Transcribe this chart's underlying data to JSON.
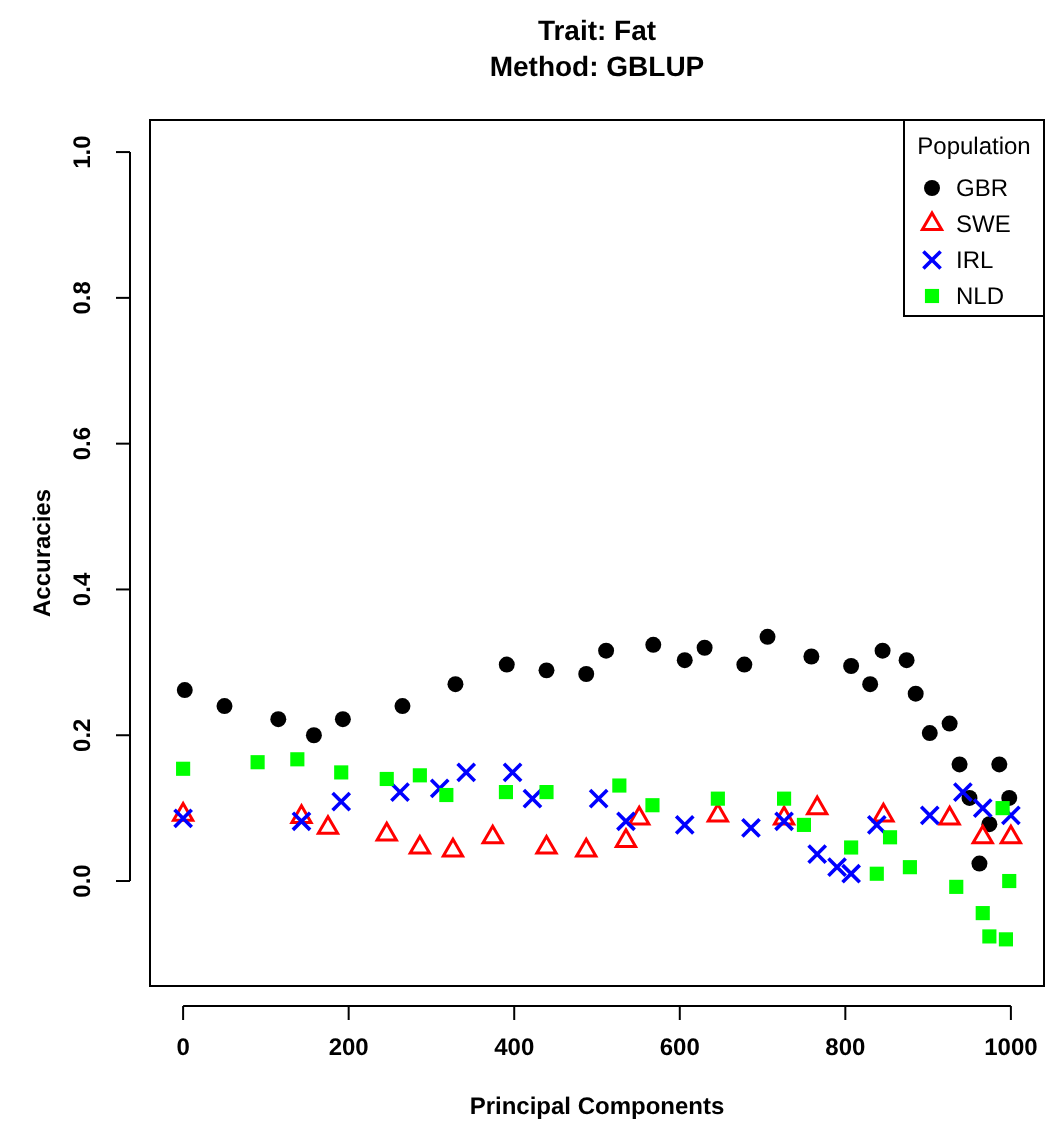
{
  "chart_data": {
    "type": "scatter",
    "title": "Trait: Fat",
    "subtitle": "Method: GBLUP",
    "xlabel": "Principal Components",
    "ylabel": "Accuracies",
    "legend_title": "Population",
    "legend": "top right",
    "grid": false,
    "xlim": [
      -40,
      1040
    ],
    "xticks": [
      0,
      200,
      400,
      600,
      800,
      1000
    ],
    "ylim": [
      -0.144,
      1.044
    ],
    "yticks": [
      {
        "value": 0,
        "label": "0.0"
      },
      0.2,
      0.4,
      0.6,
      0.8,
      {
        "value": 1,
        "label": "1.0"
      }
    ],
    "series": [
      {
        "name": "GBR",
        "color": "#000000",
        "marker": "circle",
        "x": [
          2,
          50,
          115,
          158,
          193,
          265,
          329,
          391,
          439,
          487,
          511,
          568,
          606,
          630,
          678,
          706,
          759,
          807,
          830,
          845,
          874,
          885,
          902,
          926,
          938,
          950,
          962,
          974,
          986,
          998
        ],
        "values": [
          0.262,
          0.24,
          0.222,
          0.2,
          0.222,
          0.24,
          0.27,
          0.297,
          0.289,
          0.284,
          0.316,
          0.324,
          0.303,
          0.32,
          0.297,
          0.335,
          0.308,
          0.295,
          0.27,
          0.316,
          0.303,
          0.257,
          0.203,
          0.216,
          0.16,
          0.114,
          0.024,
          0.078,
          0.16,
          0.114
        ]
      },
      {
        "name": "SWE",
        "color": "#ff0000",
        "marker": "triangle",
        "x": [
          0,
          143,
          175,
          246,
          286,
          326,
          374,
          439,
          487,
          535,
          551,
          646,
          726,
          766,
          846,
          926,
          966,
          1000
        ],
        "values": [
          0.091,
          0.088,
          0.073,
          0.064,
          0.046,
          0.042,
          0.06,
          0.046,
          0.042,
          0.055,
          0.086,
          0.09,
          0.086,
          0.1,
          0.09,
          0.086,
          0.06,
          0.06
        ]
      },
      {
        "name": "IRL",
        "color": "#0000ff",
        "marker": "cross",
        "x": [
          0,
          143,
          191,
          262,
          310,
          342,
          398,
          422,
          502,
          535,
          606,
          686,
          726,
          766,
          790,
          807,
          838,
          902,
          942,
          966,
          1000
        ],
        "values": [
          0.086,
          0.082,
          0.109,
          0.122,
          0.127,
          0.149,
          0.149,
          0.113,
          0.113,
          0.082,
          0.077,
          0.073,
          0.082,
          0.037,
          0.019,
          0.01,
          0.077,
          0.09,
          0.122,
          0.1,
          0.09
        ]
      },
      {
        "name": "NLD",
        "color": "#00ff00",
        "marker": "square",
        "x": [
          0,
          90,
          138,
          191,
          246,
          286,
          318,
          390,
          439,
          527,
          567,
          646,
          726,
          750,
          807,
          838,
          854,
          878,
          934,
          966,
          974,
          990,
          994,
          998
        ],
        "values": [
          0.154,
          0.163,
          0.167,
          0.149,
          0.14,
          0.145,
          0.118,
          0.122,
          0.122,
          0.131,
          0.104,
          0.113,
          0.113,
          0.077,
          0.046,
          0.01,
          0.06,
          0.019,
          -0.008,
          -0.044,
          -0.076,
          0.1,
          -0.08,
          0.0
        ]
      }
    ]
  }
}
